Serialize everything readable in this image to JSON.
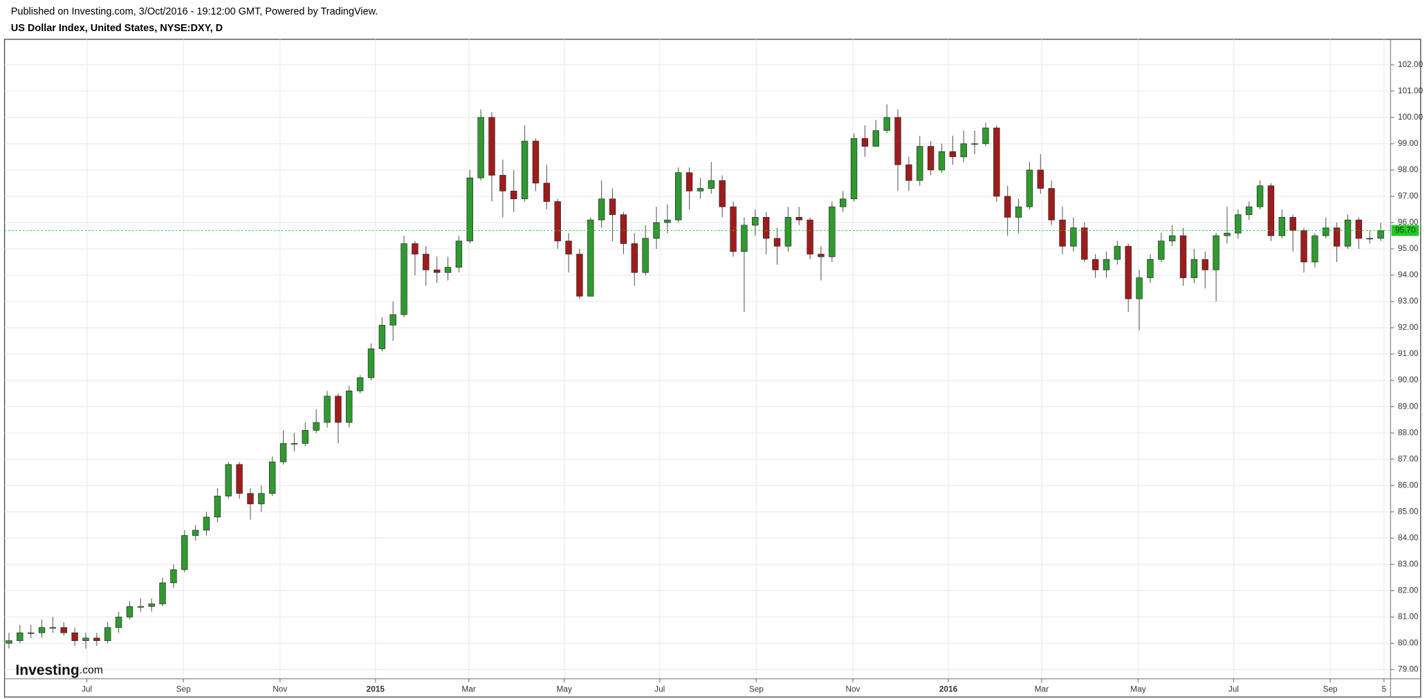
{
  "chart_data": {
    "type": "candlestick",
    "header": "Published on Investing.com, 3/Oct/2016 - 19:12:00 GMT, Powered by TradingView.",
    "title": "US Dollar Index, United States, NYSE:DXY, D",
    "logo": "Investing",
    "logo_suffix": ".com",
    "up_color": "#2f9a2f",
    "down_color": "#a01c1c",
    "last_color": "#22c922",
    "grid": true,
    "last_price": {
      "value": 95.7,
      "label": "95.70"
    },
    "xlim": [
      -0.4,
      125.9
    ],
    "xticks": [
      {
        "value": 7.1,
        "label": "Jul"
      },
      {
        "value": 15.9,
        "label": "Sep"
      },
      {
        "value": 24.7,
        "label": "Nov"
      },
      {
        "value": 33.4,
        "label": "2015"
      },
      {
        "value": 41.9,
        "label": "Mar"
      },
      {
        "value": 50.6,
        "label": "May"
      },
      {
        "value": 59.3,
        "label": "Jul"
      },
      {
        "value": 68.1,
        "label": "Sep"
      },
      {
        "value": 76.9,
        "label": "Nov"
      },
      {
        "value": 85.6,
        "label": "2016"
      },
      {
        "value": 94.1,
        "label": "Mar"
      },
      {
        "value": 102.9,
        "label": "May"
      },
      {
        "value": 111.6,
        "label": "Jul"
      },
      {
        "value": 120.4,
        "label": "Sep"
      },
      {
        "value": 125.3,
        "label": "5"
      }
    ],
    "ylim": [
      78.65,
      102.97
    ],
    "yticks": [
      {
        "value": 79,
        "label": "79.00"
      },
      {
        "value": 80,
        "label": "80.00"
      },
      {
        "value": 81,
        "label": "81.00"
      },
      {
        "value": 82,
        "label": "82.00"
      },
      {
        "value": 83,
        "label": "83.00"
      },
      {
        "value": 84,
        "label": "84.00"
      },
      {
        "value": 85,
        "label": "85.00"
      },
      {
        "value": 86,
        "label": "86.00"
      },
      {
        "value": 87,
        "label": "87.00"
      },
      {
        "value": 88,
        "label": "88.00"
      },
      {
        "value": 89,
        "label": "89.00"
      },
      {
        "value": 90,
        "label": "90.00"
      },
      {
        "value": 91,
        "label": "91.00"
      },
      {
        "value": 92,
        "label": "92.00"
      },
      {
        "value": 93,
        "label": "93.00"
      },
      {
        "value": 94,
        "label": "94.00"
      },
      {
        "value": 95,
        "label": "95.00"
      },
      {
        "value": 96,
        "label": "96.00"
      },
      {
        "value": 97,
        "label": "97.00"
      },
      {
        "value": 98,
        "label": "98.00"
      },
      {
        "value": 99,
        "label": "99.00"
      },
      {
        "value": 100,
        "label": "100.00"
      },
      {
        "value": 101,
        "label": "101.00"
      },
      {
        "value": 102,
        "label": "102.00"
      }
    ],
    "open": [
      80.0,
      80.1,
      80.4,
      80.4,
      80.6,
      80.6,
      80.4,
      80.1,
      80.2,
      80.1,
      80.6,
      81.0,
      81.4,
      81.4,
      81.5,
      82.3,
      82.8,
      84.1,
      84.3,
      84.8,
      85.6,
      86.8,
      85.7,
      85.3,
      85.7,
      86.9,
      87.6,
      87.6,
      88.1,
      88.4,
      89.4,
      88.4,
      89.6,
      90.1,
      91.2,
      92.1,
      92.5,
      95.2,
      94.8,
      94.2,
      94.1,
      94.3,
      95.3,
      97.7,
      100.0,
      97.8,
      97.2,
      96.9,
      99.1,
      97.5,
      96.8,
      95.3,
      94.8,
      93.2,
      96.1,
      96.9,
      96.3,
      95.2,
      94.1,
      95.4,
      96.0,
      96.1,
      97.9,
      97.2,
      97.3,
      97.6,
      96.6,
      94.9,
      95.9,
      96.2,
      95.4,
      95.1,
      96.2,
      96.1,
      94.8,
      94.7,
      96.6,
      96.9,
      99.2,
      98.9,
      99.5,
      100.0,
      98.2,
      97.6,
      98.9,
      98.0,
      98.7,
      98.5,
      99.0,
      99.0,
      99.6,
      97.0,
      96.2,
      96.6,
      98.0,
      97.3,
      96.1,
      95.1,
      95.8,
      94.6,
      94.2,
      94.6,
      95.1,
      93.1,
      93.9,
      94.6,
      95.3,
      95.5,
      93.9,
      94.6,
      94.2,
      95.5,
      95.6,
      96.3,
      96.6,
      97.4,
      95.5,
      96.2,
      95.7,
      94.5,
      95.5,
      95.8,
      95.1,
      96.1,
      95.4,
      95.4
    ],
    "high": [
      80.4,
      80.7,
      80.7,
      80.9,
      81.0,
      80.8,
      80.6,
      80.4,
      80.4,
      80.8,
      81.2,
      81.6,
      81.7,
      81.7,
      82.5,
      83.0,
      84.3,
      84.5,
      85.0,
      85.9,
      86.9,
      86.9,
      85.9,
      86.0,
      87.1,
      88.1,
      88.0,
      88.4,
      88.9,
      89.6,
      89.5,
      89.8,
      90.2,
      91.4,
      92.4,
      93.0,
      95.5,
      95.3,
      95.1,
      94.7,
      94.7,
      95.5,
      98.0,
      100.3,
      100.2,
      98.4,
      98.0,
      99.7,
      99.2,
      98.2,
      96.9,
      95.6,
      95.0,
      96.2,
      97.6,
      97.3,
      96.4,
      95.6,
      95.9,
      96.6,
      96.7,
      98.1,
      98.1,
      97.7,
      98.3,
      97.8,
      96.8,
      96.2,
      96.5,
      96.4,
      95.8,
      96.6,
      96.6,
      96.2,
      95.1,
      96.8,
      97.2,
      99.4,
      99.7,
      99.9,
      100.5,
      100.3,
      98.5,
      99.3,
      99.1,
      99.0,
      99.3,
      99.5,
      99.5,
      99.8,
      99.7,
      97.4,
      96.9,
      98.3,
      98.6,
      97.6,
      96.6,
      96.2,
      96.0,
      94.8,
      94.9,
      95.3,
      95.2,
      94.2,
      94.8,
      95.6,
      95.9,
      95.8,
      95.0,
      94.9,
      95.6,
      96.6,
      96.5,
      96.8,
      97.6,
      97.5,
      96.5,
      96.3,
      95.8,
      95.6,
      96.2,
      96.0,
      96.3,
      96.2,
      95.7,
      96.0
    ],
    "low": [
      79.8,
      80.0,
      80.2,
      80.2,
      80.4,
      80.3,
      79.9,
      79.8,
      79.9,
      80.0,
      80.4,
      80.9,
      81.2,
      81.2,
      81.4,
      82.1,
      82.7,
      83.9,
      84.1,
      84.6,
      85.5,
      85.5,
      84.7,
      85.0,
      85.6,
      86.8,
      87.3,
      87.5,
      88.0,
      88.2,
      87.6,
      88.2,
      89.5,
      90.0,
      91.1,
      91.5,
      92.4,
      94.0,
      93.6,
      93.7,
      93.8,
      94.1,
      95.2,
      97.6,
      96.8,
      96.2,
      96.4,
      96.8,
      97.2,
      96.5,
      95.0,
      94.1,
      93.1,
      93.2,
      95.8,
      95.3,
      94.8,
      93.6,
      94.0,
      95.0,
      95.6,
      96.0,
      96.5,
      96.9,
      97.1,
      96.2,
      94.7,
      92.6,
      95.5,
      94.8,
      94.4,
      94.9,
      95.9,
      94.6,
      93.8,
      94.5,
      96.4,
      96.8,
      98.5,
      98.9,
      99.4,
      97.2,
      97.2,
      97.4,
      97.8,
      97.9,
      98.2,
      98.3,
      98.6,
      98.9,
      96.8,
      95.5,
      95.6,
      96.5,
      97.1,
      95.9,
      94.8,
      94.9,
      94.5,
      93.9,
      93.9,
      94.4,
      92.6,
      91.9,
      93.7,
      94.5,
      95.1,
      93.6,
      93.7,
      93.5,
      93.0,
      95.2,
      95.4,
      96.1,
      96.5,
      95.3,
      95.4,
      94.9,
      94.1,
      94.3,
      95.4,
      94.5,
      95.0,
      95.0,
      95.2,
      95.3
    ],
    "close": [
      80.1,
      80.4,
      80.4,
      80.6,
      80.6,
      80.4,
      80.1,
      80.2,
      80.1,
      80.6,
      81.0,
      81.4,
      81.4,
      81.5,
      82.3,
      82.8,
      84.1,
      84.3,
      84.8,
      85.6,
      86.8,
      85.7,
      85.3,
      85.7,
      86.9,
      87.6,
      87.6,
      88.1,
      88.4,
      89.4,
      88.4,
      89.6,
      90.1,
      91.2,
      92.1,
      92.5,
      95.2,
      94.8,
      94.2,
      94.1,
      94.3,
      95.3,
      97.7,
      100.0,
      97.8,
      97.2,
      96.9,
      99.1,
      97.5,
      96.8,
      95.3,
      94.8,
      93.2,
      96.1,
      96.9,
      96.3,
      95.2,
      94.1,
      95.4,
      96.0,
      96.1,
      97.9,
      97.2,
      97.3,
      97.6,
      96.6,
      94.9,
      95.9,
      96.2,
      95.4,
      95.1,
      96.2,
      96.1,
      94.8,
      94.7,
      96.6,
      96.9,
      99.2,
      98.9,
      99.5,
      100.0,
      98.2,
      97.6,
      98.9,
      98.0,
      98.7,
      98.5,
      99.0,
      99.0,
      99.6,
      97.0,
      96.2,
      96.6,
      98.0,
      97.3,
      96.1,
      95.1,
      95.8,
      94.6,
      94.2,
      94.6,
      95.1,
      93.1,
      93.9,
      94.6,
      95.3,
      95.5,
      93.9,
      94.6,
      94.2,
      95.5,
      95.6,
      96.3,
      96.6,
      97.4,
      95.5,
      96.2,
      95.7,
      94.5,
      95.5,
      95.8,
      95.1,
      96.1,
      95.4,
      95.4,
      95.7
    ]
  }
}
